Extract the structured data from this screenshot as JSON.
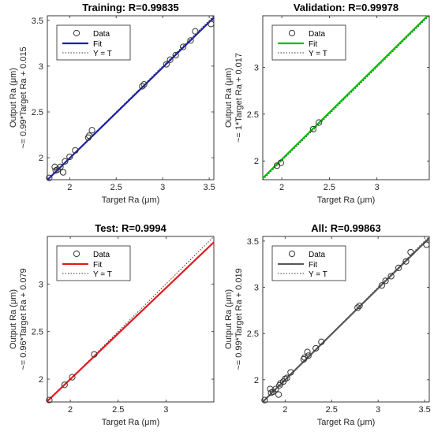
{
  "chart_data": [
    {
      "type": "scatter",
      "title": "Training: R=0.99835",
      "xlabel": "Target Ra (μm)",
      "ylabel": "Output Ra (μm)",
      "ylabel2": "~= 0.99*Target Ra + 0.015",
      "xlim": [
        1.76,
        3.55
      ],
      "ylim": [
        1.76,
        3.55
      ],
      "xticks": [
        2,
        2.5,
        3,
        3.5
      ],
      "yticks": [
        2,
        2.5,
        3,
        3.5
      ],
      "fit_color": "#1f1fa8",
      "fit": {
        "slope": 0.99,
        "intercept": 0.015
      },
      "legend": [
        "Data",
        "Fit",
        "Y = T"
      ],
      "legend_position": "top-left",
      "points": {
        "x": [
          1.78,
          1.84,
          1.85,
          1.87,
          1.9,
          1.93,
          1.95,
          2.0,
          2.06,
          2.2,
          2.21,
          2.24,
          2.78,
          2.8,
          3.04,
          3.08,
          3.14,
          3.22,
          3.3,
          3.35,
          3.52
        ],
        "y": [
          1.78,
          1.9,
          1.86,
          1.87,
          1.9,
          1.84,
          1.96,
          2.01,
          2.08,
          2.22,
          2.24,
          2.3,
          2.78,
          2.8,
          3.02,
          3.07,
          3.12,
          3.21,
          3.28,
          3.38,
          3.46
        ]
      }
    },
    {
      "type": "scatter",
      "title": "Validation: R=0.99978",
      "xlabel": "Target Ra (μm)",
      "ylabel": "Output Ra (μm)",
      "ylabel2": "~= 1*Target Ra + 0.017",
      "xlim": [
        1.8,
        3.55
      ],
      "ylim": [
        1.8,
        3.55
      ],
      "xticks": [
        2,
        2.5,
        3
      ],
      "yticks": [
        2,
        2.5,
        3
      ],
      "fit_color": "#00c000",
      "fit": {
        "slope": 1.0,
        "intercept": 0.017
      },
      "legend": [
        "Data",
        "Fit",
        "Y = T"
      ],
      "legend_position": "top-left",
      "points": {
        "x": [
          1.95,
          1.99,
          2.33,
          2.39
        ],
        "y": [
          1.95,
          1.98,
          2.34,
          2.41
        ]
      }
    },
    {
      "type": "scatter",
      "title": "Test: R=0.9994",
      "xlabel": "Target Ra (μm)",
      "ylabel": "Output Ra (μm)",
      "ylabel2": "~= 0.96*Target Ra + 0.079",
      "xlim": [
        1.76,
        3.5
      ],
      "ylim": [
        1.76,
        3.5
      ],
      "xticks": [
        2,
        2.5,
        3
      ],
      "yticks": [
        2,
        2.5,
        3
      ],
      "fit_color": "#e31a1c",
      "fit": {
        "slope": 0.96,
        "intercept": 0.079
      },
      "legend": [
        "Data",
        "Fit",
        "Y = T"
      ],
      "legend_position": "top-left",
      "points": {
        "x": [
          1.78,
          1.94,
          2.02,
          2.25
        ],
        "y": [
          1.78,
          1.94,
          2.02,
          2.26
        ]
      }
    },
    {
      "type": "scatter",
      "title": "All: R=0.99863",
      "xlabel": "Target Ra (μm)",
      "ylabel": "Output Ra (μm)",
      "ylabel2": "~= 0.99*Target Ra + 0.019",
      "xlim": [
        1.76,
        3.55
      ],
      "ylim": [
        1.76,
        3.55
      ],
      "xticks": [
        2,
        2.5,
        3,
        3.5
      ],
      "yticks": [
        2,
        2.5,
        3,
        3.5
      ],
      "fit_color": "#595959",
      "fit": {
        "slope": 0.99,
        "intercept": 0.019
      },
      "legend": [
        "Data",
        "Fit",
        "Y = T"
      ],
      "legend_position": "top-left",
      "points": {
        "x": [
          1.78,
          1.84,
          1.85,
          1.87,
          1.9,
          1.93,
          1.94,
          1.95,
          1.98,
          2.0,
          2.02,
          2.06,
          2.2,
          2.21,
          2.24,
          2.25,
          2.33,
          2.39,
          2.78,
          2.8,
          3.04,
          3.08,
          3.14,
          3.22,
          3.3,
          3.35,
          3.52
        ],
        "y": [
          1.78,
          1.9,
          1.86,
          1.87,
          1.9,
          1.84,
          1.94,
          1.96,
          1.98,
          2.01,
          2.02,
          2.08,
          2.22,
          2.24,
          2.3,
          2.26,
          2.34,
          2.41,
          2.78,
          2.8,
          3.02,
          3.07,
          3.12,
          3.21,
          3.28,
          3.38,
          3.46
        ]
      }
    }
  ]
}
